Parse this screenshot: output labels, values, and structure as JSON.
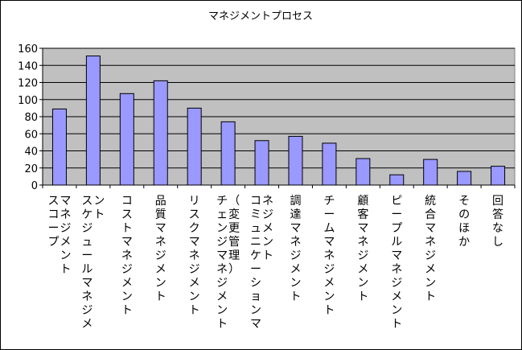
{
  "chart_data": {
    "type": "bar",
    "title": "マネジメントプロセス",
    "categories": [
      [
        "スコープ",
        "マネジメント"
      ],
      [
        "スケジュールマネジメ",
        "ント"
      ],
      [
        "コストマネジメント"
      ],
      [
        "品質マネジメント"
      ],
      [
        "リスクマネジメント"
      ],
      [
        "チェンジマネジメント",
        "（変更管理）"
      ],
      [
        "コミュニケーションマ",
        "ネジメント"
      ],
      [
        "調達マネジメント"
      ],
      [
        "チームマネジメント"
      ],
      [
        "顧客マネジメント"
      ],
      [
        "ピープルマネジメント"
      ],
      [
        "統合マネジメント"
      ],
      [
        "そのほか"
      ],
      [
        "回答なし"
      ]
    ],
    "values": [
      89,
      151,
      107,
      122,
      90,
      74,
      52,
      57,
      49,
      31,
      12,
      30,
      16,
      22
    ],
    "ylim": [
      0,
      160
    ],
    "yticks": [
      0,
      20,
      40,
      60,
      80,
      100,
      120,
      140,
      160
    ],
    "grid": true,
    "legend": "none",
    "colors": {
      "plot_bg": "#C0C0C0",
      "bar_fill": "#9999FF",
      "bar_stroke": "#000000",
      "grid": "#000000"
    }
  }
}
